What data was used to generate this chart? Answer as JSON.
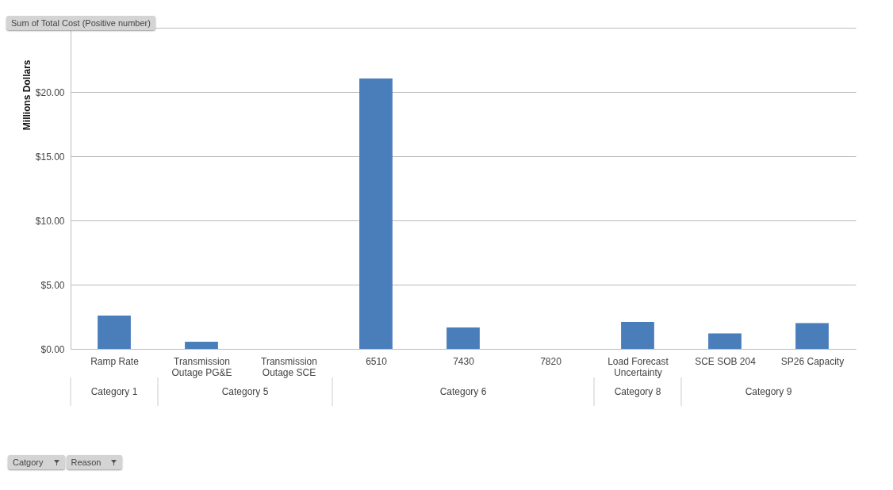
{
  "chart_data": {
    "type": "bar",
    "title": "Sum of Total Cost (Positive number)",
    "ylabel": "Millions Dollars",
    "categories": [
      "Ramp Rate",
      "Transmission Outage PG&E",
      "Transmission Outage SCE",
      "6510",
      "7430",
      "7820",
      "Load Forecast Uncertainty",
      "SCE SOB 204",
      "SP26 Capacity"
    ],
    "values": [
      2.6,
      0.55,
      0,
      21.05,
      1.67,
      0,
      2.1,
      1.2,
      2.0
    ],
    "color": "#4a7ebb",
    "ylim": [
      0,
      25
    ],
    "yticks": [
      {
        "value": 0,
        "label": "$0.00"
      },
      {
        "value": 5,
        "label": "$5.00"
      },
      {
        "value": 10,
        "label": "$10.00"
      },
      {
        "value": 15,
        "label": "$15.00"
      },
      {
        "value": 20,
        "label": "$20.00"
      },
      {
        "value": 25,
        "label": null
      }
    ],
    "grid": "y",
    "annotations": [
      "Category 1",
      "Category 5",
      "Category 6",
      "Category 8",
      "Category 9",
      "Catgory",
      "Reason"
    ]
  }
}
